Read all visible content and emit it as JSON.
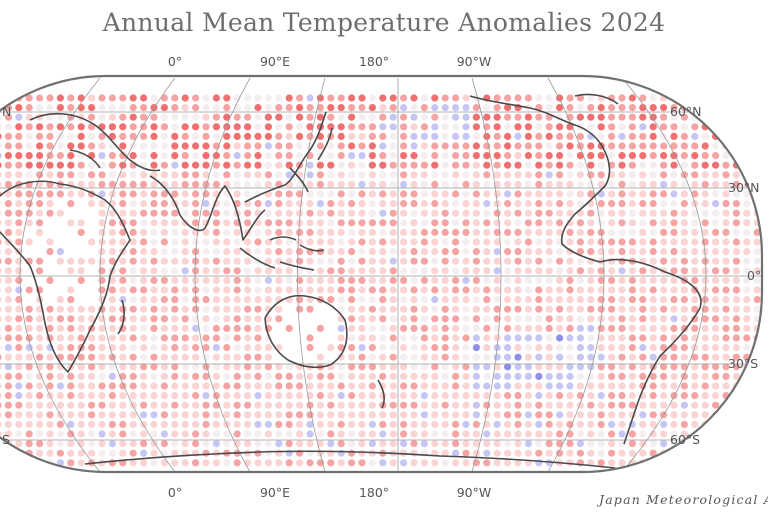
{
  "title": "Annual Mean Temperature Anomalies 2024",
  "credit": "Japan Meteorological A",
  "lon_labels_top": [
    "0°",
    "90°E",
    "180°",
    "90°W"
  ],
  "lon_labels_bottom": [
    "0°",
    "90°E",
    "180°",
    "90°W"
  ],
  "lat_labels_right": [
    "60°N",
    "30°N",
    "0°",
    "30°S",
    "60°S"
  ],
  "lat_labels_left": [
    "N",
    "S"
  ],
  "colors": {
    "warm_strong": "#f07070",
    "warm": "#f6a3a3",
    "warm_light": "#fbd3d3",
    "neutral": "#f4eef0",
    "cool": "#c6c6f4",
    "cool_strong": "#8f8fe8",
    "coast": "#4a4a4a",
    "graticule": "#9a9a9a",
    "frame": "#707070"
  }
}
